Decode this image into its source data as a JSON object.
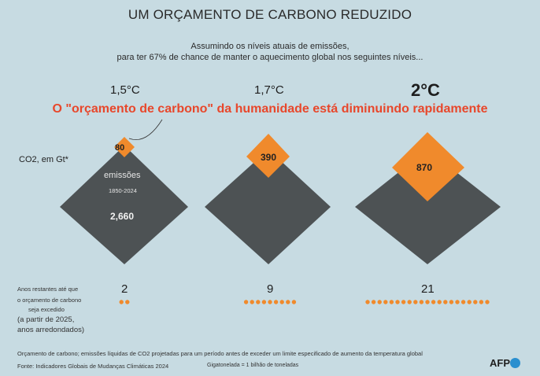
{
  "title": "UM ORÇAMENTO DE CARBONO REDUZIDO",
  "subtitle_line1": "Assumindo os níveis atuais de emissões,",
  "subtitle_line2": "para ter 67% de chance de manter o aquecimento global nos seguintes níveis...",
  "headline": "O \"orçamento de carbono\" da humanidade está diminuindo rapidamente",
  "unit_label": "CO2, em Gt*",
  "levels": [
    "1,5°C",
    "1,7°C",
    "2°C"
  ],
  "emissions": {
    "label": "emissões",
    "period": "1850-2024",
    "value": "2,660",
    "value_gt": 2660
  },
  "budgets": [
    {
      "level": "1,5°C",
      "value": "80",
      "value_gt": 80
    },
    {
      "level": "1,7°C",
      "value": "390",
      "value_gt": 390
    },
    {
      "level": "2°C",
      "value": "870",
      "value_gt": 870
    }
  ],
  "remaining": {
    "label_line1": "Anos restantes até que",
    "label_line2": "o orçamento de carbono",
    "label_line3": "seja excedido",
    "note_line1": "(a partir de 2025,",
    "note_line2": "anos arredondados)",
    "years": [
      "2",
      "9",
      "21"
    ],
    "years_num": [
      2,
      9,
      21
    ]
  },
  "footnote": "Orçamento de carbono; emissões líquidas de CO2 projetadas para um período antes de exceder um limite especificado de aumento da temperatura global",
  "source": "Fonte: Indicadores Globais de Mudanças Climáticas 2024",
  "gigatonne_note": "Gigatonelada = 1 bilhão de toneladas",
  "logo": "AFP",
  "colors": {
    "background": "#c7dbe2",
    "emissions": "#4d5254",
    "budget": "#f08a2c",
    "headline": "#e8472b",
    "logo_dot": "#2a8fcf"
  }
}
